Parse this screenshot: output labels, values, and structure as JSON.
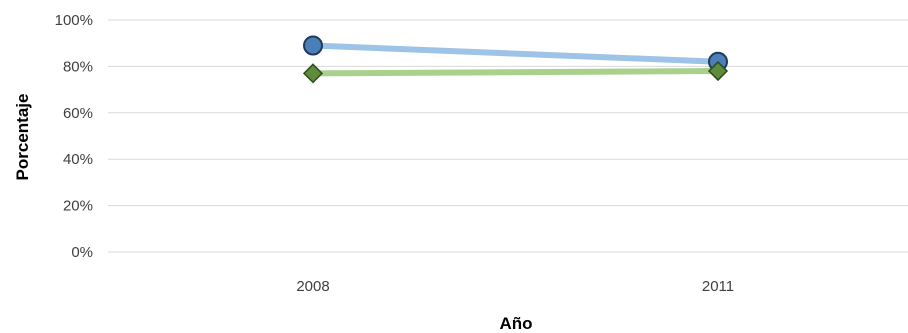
{
  "chart_data": {
    "type": "line",
    "categories": [
      "2008",
      "2011"
    ],
    "series": [
      {
        "values": [
          89,
          82
        ],
        "color": "#9dc3e6",
        "marker_color": "#4a7fb8",
        "marker": "circle"
      },
      {
        "values": [
          77,
          78
        ],
        "color": "#a9d18e",
        "marker_color": "#5e8c3a",
        "marker": "diamond"
      }
    ],
    "xlabel": "Año",
    "ylabel": "Porcentaje",
    "ylim": [
      0,
      100
    ],
    "yticks": [
      "0%",
      "20%",
      "40%",
      "60%",
      "80%",
      "100%"
    ],
    "grid": true,
    "legend": "none"
  }
}
